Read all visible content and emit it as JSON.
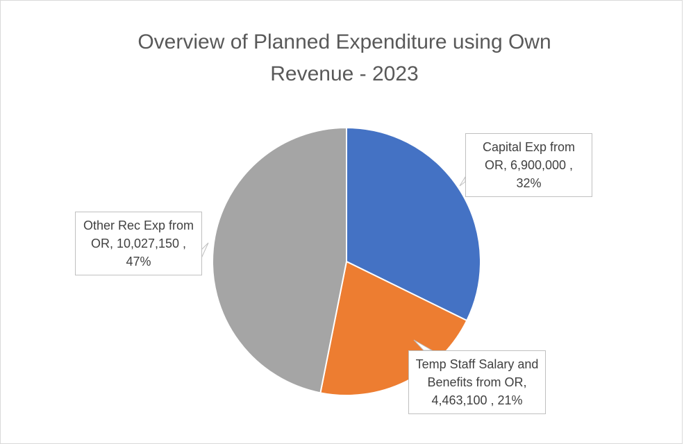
{
  "chart_data": {
    "type": "pie",
    "title": "Overview of Planned Expenditure using Own Revenue - 2023",
    "values": [
      6900000,
      4463100,
      10027150
    ],
    "value_labels": [
      "Capital Exp from OR, 6,900,000 , 32%",
      "Temp Staff Salary and Benefits from OR, 4,463,100 , 21%",
      "Other Rec Exp from OR, 10,027,150 , 47%"
    ],
    "colors": [
      "#4472c4",
      "#ed7d31",
      "#a5a5a5"
    ]
  }
}
